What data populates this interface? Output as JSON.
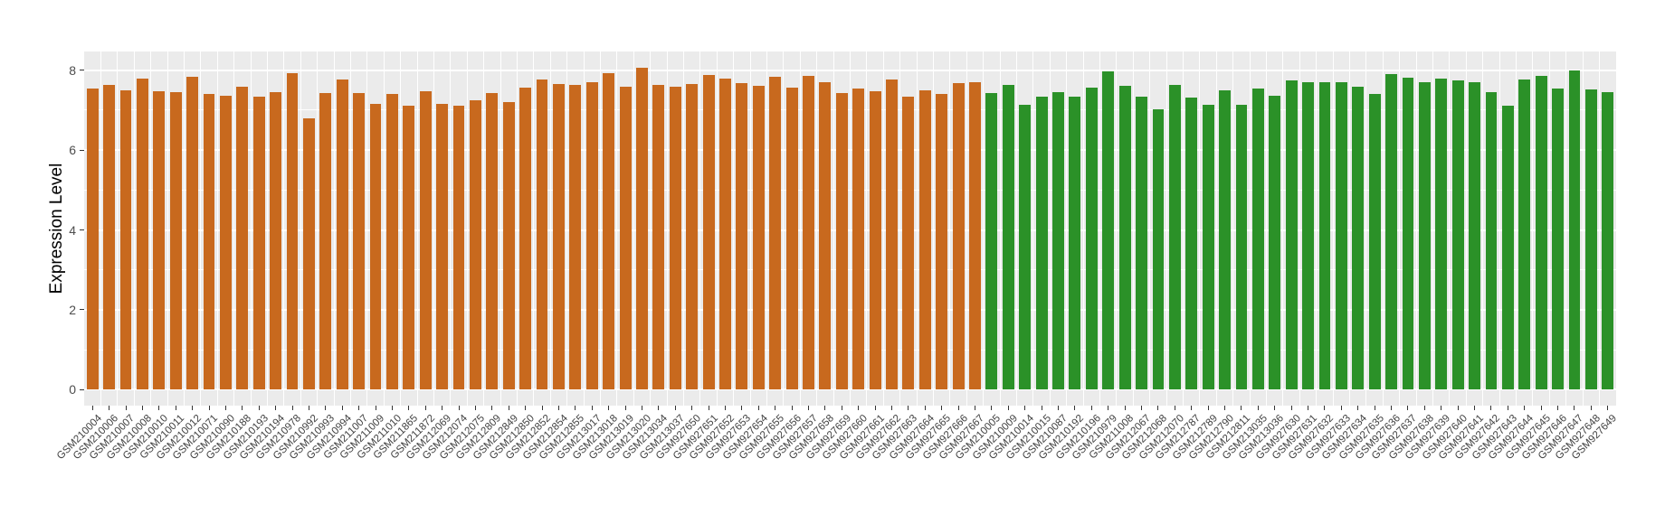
{
  "chart_data": {
    "type": "bar",
    "title": "",
    "xlabel": "",
    "ylabel": "Expression Level",
    "ylim": [
      0,
      8.47
    ],
    "yticks": [
      0,
      2,
      4,
      6,
      8
    ],
    "yticks_minor": [
      1,
      3,
      5,
      7
    ],
    "grid": true,
    "legend_position": "none",
    "panel_background": "#EBEBEB",
    "gridline_color": "#FFFFFF",
    "axis_text_color": "#404040",
    "group_colors": {
      "G1": "#C8691E",
      "G2": "#2B9128"
    },
    "groups_meta": {
      "G1": "orange-group",
      "G2": "green-group"
    },
    "categories": [
      "GSM210004",
      "GSM210006",
      "GSM210007",
      "GSM210008",
      "GSM210010",
      "GSM210011",
      "GSM210012",
      "GSM210071",
      "GSM210090",
      "GSM210188",
      "GSM210193",
      "GSM210194",
      "GSM210978",
      "GSM210992",
      "GSM210993",
      "GSM210994",
      "GSM211007",
      "GSM211009",
      "GSM211010",
      "GSM211865",
      "GSM211872",
      "GSM212069",
      "GSM212074",
      "GSM212075",
      "GSM212809",
      "GSM212849",
      "GSM212850",
      "GSM212852",
      "GSM212854",
      "GSM212855",
      "GSM213017",
      "GSM213018",
      "GSM213019",
      "GSM213020",
      "GSM213034",
      "GSM213037",
      "GSM927650",
      "GSM927651",
      "GSM927652",
      "GSM927653",
      "GSM927654",
      "GSM927655",
      "GSM927656",
      "GSM927657",
      "GSM927658",
      "GSM927659",
      "GSM927660",
      "GSM927661",
      "GSM927662",
      "GSM927663",
      "GSM927664",
      "GSM927665",
      "GSM927666",
      "GSM927667",
      "GSM210005",
      "GSM210009",
      "GSM210014",
      "GSM210015",
      "GSM210087",
      "GSM210192",
      "GSM210196",
      "GSM210979",
      "GSM211008",
      "GSM212067",
      "GSM212068",
      "GSM212070",
      "GSM212787",
      "GSM212789",
      "GSM212790",
      "GSM212811",
      "GSM213035",
      "GSM213036",
      "GSM927630",
      "GSM927631",
      "GSM927632",
      "GSM927633",
      "GSM927634",
      "GSM927635",
      "GSM927636",
      "GSM927637",
      "GSM927638",
      "GSM927639",
      "GSM927640",
      "GSM927641",
      "GSM927642",
      "GSM927643",
      "GSM927644",
      "GSM927645",
      "GSM927646",
      "GSM927647",
      "GSM927648",
      "GSM927649"
    ],
    "values": [
      7.53,
      7.62,
      7.5,
      7.8,
      7.47,
      7.44,
      7.83,
      7.41,
      7.35,
      7.59,
      7.34,
      7.44,
      7.92,
      6.8,
      7.42,
      7.77,
      7.42,
      7.16,
      7.41,
      7.1,
      7.48,
      7.15,
      7.1,
      7.25,
      7.43,
      7.21,
      7.57,
      7.77,
      7.66,
      7.64,
      7.71,
      7.93,
      7.59,
      8.06,
      7.62,
      7.59,
      7.66,
      7.88,
      7.8,
      7.67,
      7.6,
      7.83,
      7.57,
      7.86,
      7.69,
      7.43,
      7.53,
      7.48,
      7.77,
      7.34,
      7.5,
      7.4,
      7.67,
      7.71,
      7.42,
      7.64,
      7.13,
      7.34,
      7.45,
      7.33,
      7.57,
      7.97,
      7.6,
      7.33,
      7.01,
      7.64,
      7.32,
      7.14,
      7.49,
      7.14,
      7.54,
      7.37,
      7.74,
      7.71,
      7.71,
      7.69,
      7.59,
      7.4,
      7.9,
      7.82,
      7.71,
      7.79,
      7.74,
      7.71,
      7.44,
      7.1,
      7.77,
      7.85,
      7.55,
      7.99,
      7.52,
      7.46
    ],
    "bar_groups": [
      "G1",
      "G1",
      "G1",
      "G1",
      "G1",
      "G1",
      "G1",
      "G1",
      "G1",
      "G1",
      "G1",
      "G1",
      "G1",
      "G1",
      "G1",
      "G1",
      "G1",
      "G1",
      "G1",
      "G1",
      "G1",
      "G1",
      "G1",
      "G1",
      "G1",
      "G1",
      "G1",
      "G1",
      "G1",
      "G1",
      "G1",
      "G1",
      "G1",
      "G1",
      "G1",
      "G1",
      "G1",
      "G1",
      "G1",
      "G1",
      "G1",
      "G1",
      "G1",
      "G1",
      "G1",
      "G1",
      "G1",
      "G1",
      "G1",
      "G1",
      "G1",
      "G1",
      "G1",
      "G1",
      "G2",
      "G2",
      "G2",
      "G2",
      "G2",
      "G2",
      "G2",
      "G2",
      "G2",
      "G2",
      "G2",
      "G2",
      "G2",
      "G2",
      "G2",
      "G2",
      "G2",
      "G2",
      "G2",
      "G2",
      "G2",
      "G2",
      "G2",
      "G2",
      "G2",
      "G2",
      "G2",
      "G2",
      "G2",
      "G2",
      "G2",
      "G2",
      "G2",
      "G2",
      "G2",
      "G2",
      "G2",
      "G2"
    ]
  }
}
